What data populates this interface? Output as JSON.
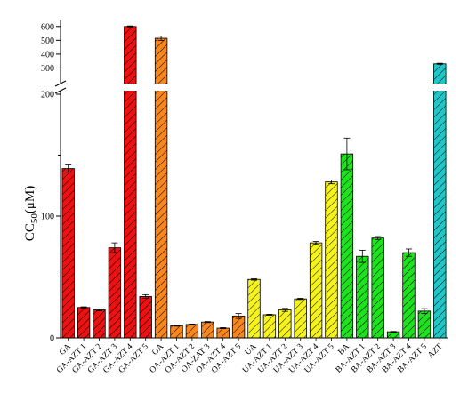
{
  "chart_data": {
    "type": "bar",
    "title": "",
    "xlabel": "",
    "ylabel": "CC50(μM)",
    "ylabel_main": "CC",
    "ylabel_sub": "50",
    "ylabel_unit": "(μM)",
    "y_axis_break": true,
    "ylim_lower": [
      0,
      200
    ],
    "ylim_upper": [
      200,
      650
    ],
    "lower_ticks": [
      0,
      100,
      200
    ],
    "upper_ticks": [
      300,
      400,
      500,
      600
    ],
    "bar_fill_pattern": "diagonal hatch",
    "categories": [
      "GA",
      "GA-AZT 1",
      "GA-AZT 2",
      "GA-AZT 3",
      "GA-AZT 4",
      "GA-AZT 5",
      "OA",
      "OA-AZT 1",
      "OA-AZT 2",
      "OA-ZAT 3",
      "OA-AZT 4",
      "OA-AZT 5",
      "UA",
      "UA-AZT 1",
      "UA-AZT 2",
      "UA-AZT 3",
      "UA-AZT 4",
      "UA-AZT 5",
      "BA",
      "BA-AZT 1",
      "BA-AZT 2",
      "BA-AZT 3",
      "BA-AZT 4",
      "BA-AZT 5",
      "AZT"
    ],
    "values": [
      139,
      25,
      23,
      74,
      600,
      34,
      515,
      10,
      11,
      13,
      8,
      18,
      48,
      19,
      23,
      32,
      78,
      128,
      151,
      67,
      82,
      5,
      70,
      22,
      330
    ],
    "errors": [
      3,
      0.5,
      0.8,
      4,
      4,
      1.5,
      15,
      0.4,
      0.4,
      0.4,
      0.4,
      2,
      0.6,
      0.4,
      1.2,
      0.5,
      1.2,
      1.5,
      13,
      5,
      1.2,
      0.3,
      3,
      2,
      4
    ],
    "colors": [
      "#ee1111",
      "#ee1111",
      "#ee1111",
      "#ee1111",
      "#ee1111",
      "#ee1111",
      "#f7861e",
      "#f7861e",
      "#f7861e",
      "#f7861e",
      "#f7861e",
      "#f7861e",
      "#f6f21c",
      "#f6f21c",
      "#f6f21c",
      "#f6f21c",
      "#f6f21c",
      "#f6f21c",
      "#1fe21f",
      "#1fe21f",
      "#1fe21f",
      "#1fe21f",
      "#1fe21f",
      "#1fe21f",
      "#1fc7c7"
    ],
    "grid": false,
    "legend": "none"
  }
}
